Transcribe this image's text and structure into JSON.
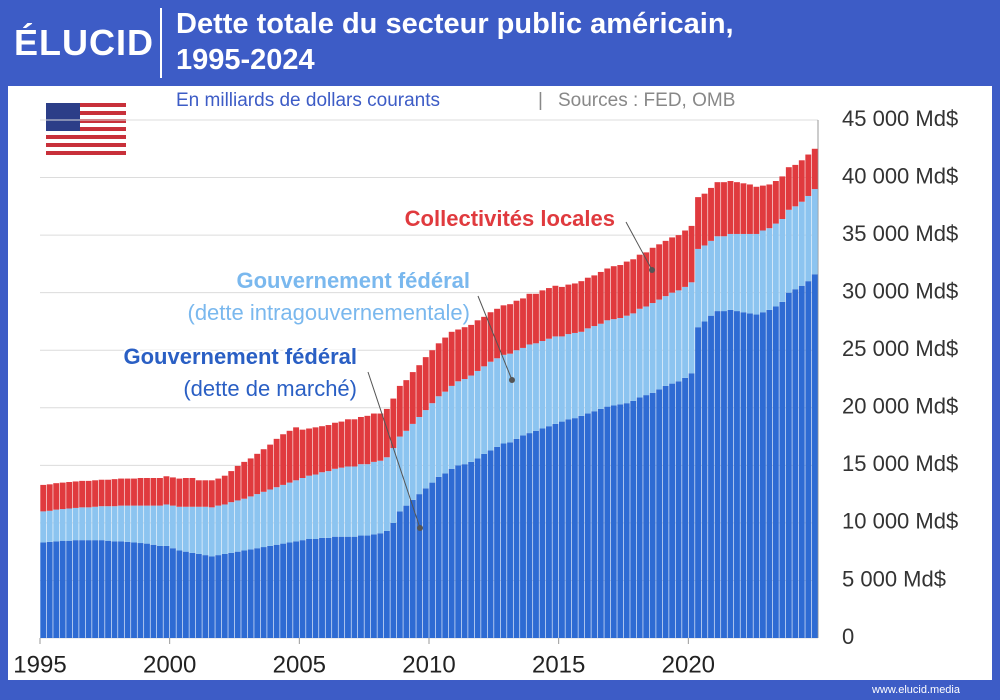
{
  "header": {
    "logo": "ÉLUCID",
    "title_lines": [
      "Dette totale du secteur public américain,",
      "1995-2024"
    ],
    "subtitle": "En milliards de dollars courants",
    "separator": "|",
    "sources": "Sources : FED, OMB"
  },
  "footer": {
    "url": "www.elucid.media"
  },
  "chart_data": {
    "type": "stacked-bar",
    "x": [
      1995,
      1995.25,
      1995.5,
      1995.75,
      1996,
      1996.25,
      1996.5,
      1996.75,
      1997,
      1997.25,
      1997.5,
      1997.75,
      1998,
      1998.25,
      1998.5,
      1998.75,
      1999,
      1999.25,
      1999.5,
      1999.75,
      2000,
      2000.25,
      2000.5,
      2000.75,
      2001,
      2001.25,
      2001.5,
      2001.75,
      2002,
      2002.25,
      2002.5,
      2002.75,
      2003,
      2003.25,
      2003.5,
      2003.75,
      2004,
      2004.25,
      2004.5,
      2004.75,
      2005,
      2005.25,
      2005.5,
      2005.75,
      2006,
      2006.25,
      2006.5,
      2006.75,
      2007,
      2007.25,
      2007.5,
      2007.75,
      2008,
      2008.25,
      2008.5,
      2008.75,
      2009,
      2009.25,
      2009.5,
      2009.75,
      2010,
      2010.25,
      2010.5,
      2010.75,
      2011,
      2011.25,
      2011.5,
      2011.75,
      2012,
      2012.25,
      2012.5,
      2012.75,
      2013,
      2013.25,
      2013.5,
      2013.75,
      2014,
      2014.25,
      2014.5,
      2014.75,
      2015,
      2015.25,
      2015.5,
      2015.75,
      2016,
      2016.25,
      2016.5,
      2016.75,
      2017,
      2017.25,
      2017.5,
      2017.75,
      2018,
      2018.25,
      2018.5,
      2018.75,
      2019,
      2019.25,
      2019.5,
      2019.75,
      2020,
      2020.25,
      2020.5,
      2020.75,
      2021,
      2021.25,
      2021.5,
      2021.75,
      2022,
      2022.25,
      2022.5,
      2022.75,
      2023,
      2023.25,
      2023.5,
      2023.75,
      2024,
      2024.25,
      2024.5,
      2024.75
    ],
    "series": [
      {
        "name": "Gouvernement fédéral",
        "sublabel": "(dette de marché)",
        "color": "#2e6bd3",
        "label_color": "#2a5fc4",
        "values": [
          8300,
          8350,
          8400,
          8450,
          8450,
          8500,
          8500,
          8500,
          8500,
          8500,
          8450,
          8400,
          8400,
          8350,
          8300,
          8250,
          8200,
          8100,
          8000,
          8000,
          7800,
          7600,
          7500,
          7400,
          7300,
          7200,
          7100,
          7200,
          7300,
          7400,
          7500,
          7600,
          7700,
          7800,
          7900,
          8000,
          8100,
          8200,
          8300,
          8400,
          8500,
          8600,
          8600,
          8700,
          8700,
          8800,
          8800,
          8800,
          8800,
          8900,
          8900,
          9000,
          9100,
          9300,
          10000,
          11000,
          11500,
          12000,
          12500,
          13000,
          13500,
          14000,
          14300,
          14700,
          15000,
          15100,
          15300,
          15600,
          16000,
          16300,
          16600,
          16900,
          17000,
          17300,
          17600,
          17800,
          18000,
          18200,
          18400,
          18600,
          18800,
          19000,
          19100,
          19300,
          19500,
          19700,
          19900,
          20100,
          20200,
          20300,
          20400,
          20600,
          20900,
          21100,
          21300,
          21600,
          21900,
          22100,
          22300,
          22600,
          23000,
          27000,
          27500,
          28000,
          28400,
          28400,
          28500,
          28400,
          28300,
          28200,
          28100,
          28300,
          28500,
          28800,
          29200,
          30000,
          30300,
          30600,
          31000,
          31600
        ]
      },
      {
        "name": "Gouvernement fédéral",
        "sublabel": "(dette intragouvernementale)",
        "color": "#8cc4f0",
        "label_color": "#7ab8ee",
        "values": [
          2700,
          2700,
          2750,
          2750,
          2800,
          2800,
          2850,
          2850,
          2900,
          2950,
          3000,
          3050,
          3100,
          3150,
          3200,
          3250,
          3300,
          3400,
          3500,
          3600,
          3700,
          3800,
          3900,
          4000,
          4100,
          4200,
          4250,
          4300,
          4300,
          4400,
          4450,
          4500,
          4600,
          4700,
          4800,
          4900,
          5000,
          5100,
          5200,
          5300,
          5400,
          5500,
          5600,
          5700,
          5800,
          5900,
          6000,
          6100,
          6100,
          6200,
          6200,
          6300,
          6300,
          6400,
          6500,
          6500,
          6500,
          6600,
          6700,
          6800,
          6900,
          7000,
          7100,
          7200,
          7300,
          7400,
          7500,
          7600,
          7600,
          7700,
          7700,
          7700,
          7700,
          7700,
          7600,
          7700,
          7600,
          7600,
          7600,
          7600,
          7400,
          7400,
          7400,
          7300,
          7400,
          7400,
          7400,
          7500,
          7500,
          7500,
          7600,
          7600,
          7700,
          7700,
          7800,
          7800,
          7800,
          7900,
          7900,
          7900,
          7900,
          6800,
          6600,
          6500,
          6500,
          6500,
          6600,
          6700,
          6800,
          6900,
          7000,
          7100,
          7100,
          7200,
          7200,
          7200,
          7200,
          7300,
          7400,
          7400
        ]
      },
      {
        "name": "Collectivités locales",
        "color": "#e03a3e",
        "label_color": "#e03a3e",
        "values": [
          2300,
          2300,
          2300,
          2300,
          2300,
          2300,
          2300,
          2300,
          2300,
          2300,
          2300,
          2350,
          2350,
          2350,
          2350,
          2400,
          2400,
          2400,
          2400,
          2450,
          2450,
          2450,
          2500,
          2500,
          2300,
          2300,
          2350,
          2350,
          2500,
          2700,
          3000,
          3200,
          3300,
          3500,
          3700,
          3900,
          4200,
          4400,
          4500,
          4600,
          4200,
          4100,
          4100,
          4000,
          4000,
          4000,
          4000,
          4100,
          4100,
          4100,
          4200,
          4200,
          4100,
          4200,
          4300,
          4400,
          4400,
          4500,
          4500,
          4600,
          4600,
          4600,
          4700,
          4700,
          4500,
          4500,
          4400,
          4400,
          4300,
          4300,
          4300,
          4300,
          4300,
          4300,
          4300,
          4400,
          4300,
          4400,
          4400,
          4400,
          4300,
          4300,
          4300,
          4400,
          4400,
          4400,
          4500,
          4500,
          4600,
          4600,
          4700,
          4700,
          4700,
          4700,
          4800,
          4800,
          4800,
          4800,
          4800,
          4900,
          4900,
          4500,
          4500,
          4600,
          4700,
          4700,
          4600,
          4500,
          4400,
          4300,
          4100,
          3900,
          3800,
          3700,
          3700,
          3700,
          3600,
          3600,
          3600,
          3500
        ]
      }
    ],
    "xlim": [
      1995,
      2025
    ],
    "xticks": [
      1995,
      2000,
      2005,
      2010,
      2015,
      2020
    ],
    "ylim": [
      0,
      45000
    ],
    "yticks": [
      0,
      {
        "value": 5000,
        "label": "5 000 Md$"
      },
      {
        "value": 10000,
        "label": "10 000 Md$"
      },
      {
        "value": 15000,
        "label": "15 000 Md$"
      },
      {
        "value": 20000,
        "label": "20 000 Md$"
      },
      {
        "value": 25000,
        "label": "25 000 Md$"
      },
      {
        "value": 30000,
        "label": "30 000 Md$"
      },
      {
        "value": 35000,
        "label": "35 000 Md$"
      },
      {
        "value": 40000,
        "label": "40 000 Md$"
      },
      {
        "value": 45000,
        "label": "45 000 Md$"
      }
    ],
    "grid": true
  }
}
